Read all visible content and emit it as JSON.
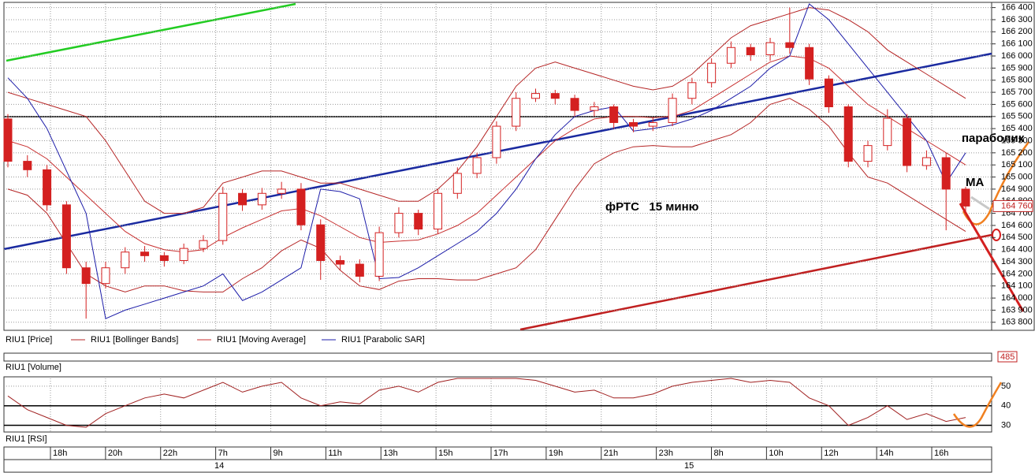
{
  "chart_data": [
    {
      "type": "candlestick",
      "ylim": [
        163740,
        166430
      ],
      "yticks": [
        {
          "value": 163800,
          "label": "163 800"
        },
        {
          "value": 163900,
          "label": "163 900"
        },
        {
          "value": 164000,
          "label": "164 000"
        },
        {
          "value": 164100,
          "label": "164 100"
        },
        {
          "value": 164200,
          "label": "164 200"
        },
        {
          "value": 164300,
          "label": "164 300"
        },
        {
          "value": 164400,
          "label": "164 400"
        },
        {
          "value": 164500,
          "label": "164 500"
        },
        {
          "value": 164600,
          "label": "164 600"
        },
        {
          "value": 164700,
          "label": "164 700"
        },
        {
          "value": 164800,
          "label": "164 800"
        },
        {
          "value": 164900,
          "label": "164 900"
        },
        {
          "value": 165000,
          "label": "165 000"
        },
        {
          "value": 165100,
          "label": "165 100"
        },
        {
          "value": 165200,
          "label": "165 200"
        },
        {
          "value": 165300,
          "label": "165 300"
        },
        {
          "value": 165400,
          "label": "165 400"
        },
        {
          "value": 165500,
          "label": "165 500"
        },
        {
          "value": 165600,
          "label": "165 600"
        },
        {
          "value": 165700,
          "label": "165 700"
        },
        {
          "value": 165800,
          "label": "165 800"
        },
        {
          "value": 165900,
          "label": "165 900"
        },
        {
          "value": 166000,
          "label": "166 000"
        },
        {
          "value": 166100,
          "label": "166 100"
        },
        {
          "value": 166200,
          "label": "166 200"
        },
        {
          "value": 166300,
          "label": "166 300"
        },
        {
          "value": 166400,
          "label": "166 400"
        }
      ],
      "grid": true,
      "last_price": {
        "value": 164760,
        "label": "164 760"
      },
      "candles": {
        "name": "RIU1 [Price]",
        "color": "#d42020",
        "open": [
          165480,
          165130,
          165060,
          164770,
          164250,
          164120,
          164250,
          164380,
          164350,
          164310,
          164410,
          164475,
          164865,
          164770,
          164865,
          164900,
          164605,
          164310,
          164280,
          164180,
          164540,
          164700,
          164570,
          164865,
          165030,
          165160,
          165420,
          165650,
          165690,
          165650,
          165550,
          165580,
          165450,
          165420,
          165450,
          165650,
          165780,
          165940,
          166070,
          166010,
          166110,
          166070,
          165810,
          165580,
          165130,
          165260,
          165485,
          165095,
          165160,
          164900
        ],
        "high": [
          165520,
          165180,
          165100,
          164800,
          164300,
          164300,
          164420,
          164430,
          164380,
          164450,
          164520,
          164920,
          164900,
          164910,
          164960,
          164950,
          164650,
          164350,
          164320,
          164590,
          164750,
          164730,
          164900,
          165080,
          165200,
          165460,
          165700,
          165730,
          165720,
          165680,
          165620,
          165600,
          165480,
          165490,
          165690,
          165820,
          165980,
          166120,
          166100,
          166150,
          166400,
          166100,
          165840,
          165600,
          165300,
          165560,
          165520,
          165220,
          165200,
          164920
        ],
        "low": [
          165080,
          165000,
          164720,
          164200,
          163830,
          164080,
          164200,
          164300,
          164260,
          164280,
          164380,
          164440,
          164720,
          164730,
          164820,
          164560,
          164150,
          164230,
          164130,
          164140,
          164500,
          164520,
          164530,
          164820,
          164990,
          165110,
          165380,
          165620,
          165600,
          165500,
          165500,
          165400,
          165370,
          165380,
          165420,
          165600,
          165740,
          165900,
          165960,
          165960,
          166020,
          165760,
          165530,
          165080,
          165080,
          165220,
          165040,
          165060,
          164560,
          164700
        ],
        "close": [
          165130,
          165060,
          164770,
          164250,
          164120,
          164250,
          164380,
          164350,
          164310,
          164410,
          164475,
          164865,
          164770,
          164865,
          164900,
          164605,
          164310,
          164280,
          164180,
          164540,
          164700,
          164570,
          164865,
          165030,
          165160,
          165420,
          165650,
          165690,
          165650,
          165550,
          165580,
          165450,
          165420,
          165450,
          165650,
          165780,
          165940,
          166070,
          166010,
          166110,
          166070,
          165810,
          165580,
          165130,
          165260,
          165485,
          165095,
          165160,
          164900,
          164760
        ]
      },
      "bollinger": {
        "name": "RIU1 [Bollinger Bands]",
        "color": "#b52525",
        "upper": [
          165700,
          165650,
          165600,
          165550,
          165500,
          165300,
          165050,
          164800,
          164700,
          164700,
          164750,
          164950,
          165000,
          165050,
          165050,
          165000,
          164950,
          164950,
          164900,
          164850,
          164800,
          164800,
          164900,
          165050,
          165250,
          165500,
          165750,
          165900,
          165950,
          165900,
          165850,
          165800,
          165750,
          165720,
          165750,
          165850,
          166000,
          166150,
          166250,
          166300,
          166350,
          166400,
          166380,
          166300,
          166200,
          166050,
          165950,
          165850,
          165750,
          165650
        ],
        "lower": [
          164900,
          164850,
          164700,
          164450,
          164200,
          164100,
          164050,
          164100,
          164100,
          164060,
          164050,
          164050,
          164160,
          164250,
          164390,
          164480,
          164410,
          164230,
          164100,
          164070,
          164140,
          164160,
          164160,
          164150,
          164150,
          164200,
          164250,
          164400,
          164650,
          164900,
          165110,
          165200,
          165250,
          165260,
          165250,
          165250,
          165300,
          165350,
          165450,
          165600,
          165650,
          165560,
          165420,
          165200,
          165000,
          164950,
          164850,
          164750,
          164650,
          164550
        ]
      },
      "moving_average": {
        "name": "RIU1 [Moving Average]",
        "color": "#c83030",
        "values": [
          165300,
          165250,
          165150,
          165000,
          164850,
          164700,
          164550,
          164450,
          164400,
          164380,
          164400,
          164500,
          164580,
          164650,
          164720,
          164740,
          164680,
          164590,
          164500,
          164460,
          164470,
          164480,
          164530,
          164600,
          164700,
          164850,
          165000,
          165150,
          165300,
          165400,
          165480,
          165500,
          165500,
          165490,
          165500,
          165550,
          165650,
          165750,
          165850,
          165950,
          166000,
          165980,
          165900,
          165750,
          165600,
          165500,
          165400,
          165300,
          165200,
          165100
        ]
      },
      "parabolic_sar": {
        "name": "RIU1 [Parabolic SAR]",
        "color": "#1c1ca8",
        "values": [
          165820,
          165650,
          165400,
          165050,
          164700,
          163830,
          163900,
          163950,
          164000,
          164050,
          164100,
          164200,
          163980,
          164050,
          164150,
          164250,
          164900,
          164880,
          164820,
          164160,
          164170,
          164250,
          164350,
          164450,
          164550,
          164700,
          164900,
          165150,
          165350,
          165500,
          165550,
          165580,
          165380,
          165400,
          165430,
          165480,
          165550,
          165650,
          165750,
          165900,
          166000,
          166430,
          166300,
          166100,
          165900,
          165700,
          165500,
          165300,
          164950,
          165200
        ]
      },
      "annotations": [
        "фРТС   15 миню",
        "параболик",
        "MA"
      ]
    },
    {
      "type": "line",
      "title": "RIU1 [RSI]",
      "color": "#a02020",
      "ylim": [
        27,
        54
      ],
      "yticks": [
        30,
        40,
        50
      ],
      "values": [
        45,
        38,
        34,
        30,
        29,
        36,
        40,
        44,
        46,
        44,
        48,
        52,
        47,
        50,
        52,
        44,
        40,
        42,
        41,
        48,
        50,
        47,
        52,
        54,
        54,
        54,
        54,
        53,
        50,
        47,
        48,
        44,
        44,
        46,
        50,
        52,
        53,
        54,
        52,
        53,
        52,
        44,
        40,
        30,
        34,
        40,
        33,
        36,
        32,
        34
      ]
    }
  ],
  "volume": {
    "title": "RIU1 [Volume]",
    "last": 485
  },
  "time_axis": {
    "labels": [
      "18h",
      "20h",
      "22h",
      "7h",
      "9h",
      "11h",
      "13h",
      "15h",
      "17h",
      "19h",
      "21h",
      "23h",
      "8h",
      "10h",
      "12h",
      "14h",
      "16h"
    ],
    "dates": [
      "14",
      "15"
    ]
  }
}
